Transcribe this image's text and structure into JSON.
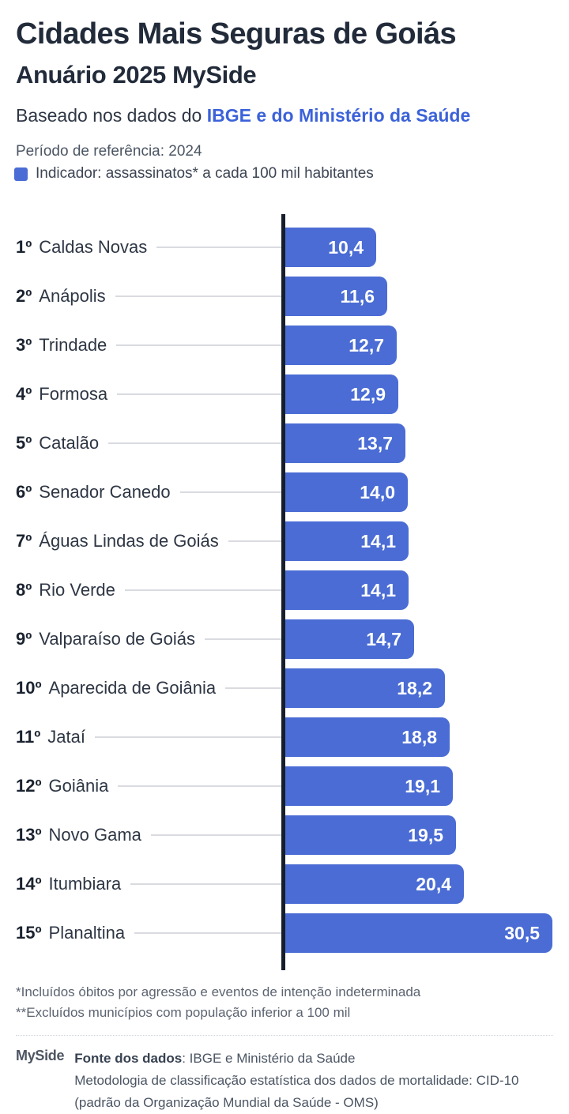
{
  "header": {
    "title": "Cidades Mais Seguras de Goiás",
    "subtitle": "Anuário 2025 MySide",
    "source_prefix": "Baseado nos dados do ",
    "source_link": "IBGE e do Ministério da Saúde",
    "period": "Período de referência: 2024",
    "legend_label": "Indicador: assassinatos* a cada 100 mil habitantes"
  },
  "chart_data": {
    "type": "bar",
    "orientation": "horizontal",
    "title": "Cidades Mais Seguras de Goiás — Anuário 2025 MySide",
    "xlabel": "assassinatos a cada 100 mil habitantes",
    "xlim": [
      0,
      30.5
    ],
    "bar_color": "#4a6cd4",
    "axis_color": "#171e2b",
    "rows": [
      {
        "rank": "1º",
        "city": "Caldas Novas",
        "value": 10.4,
        "label": "10,4"
      },
      {
        "rank": "2º",
        "city": "Anápolis",
        "value": 11.6,
        "label": "11,6"
      },
      {
        "rank": "3º",
        "city": "Trindade",
        "value": 12.7,
        "label": "12,7"
      },
      {
        "rank": "4º",
        "city": "Formosa",
        "value": 12.9,
        "label": "12,9"
      },
      {
        "rank": "5º",
        "city": "Catalão",
        "value": 13.7,
        "label": "13,7"
      },
      {
        "rank": "6º",
        "city": "Senador Canedo",
        "value": 14.0,
        "label": "14,0"
      },
      {
        "rank": "7º",
        "city": "Águas Lindas de Goiás",
        "value": 14.1,
        "label": "14,1"
      },
      {
        "rank": "8º",
        "city": "Rio Verde",
        "value": 14.1,
        "label": "14,1"
      },
      {
        "rank": "9º",
        "city": "Valparaíso de Goiás",
        "value": 14.7,
        "label": "14,7"
      },
      {
        "rank": "10º",
        "city": "Aparecida de Goiânia",
        "value": 18.2,
        "label": "18,2"
      },
      {
        "rank": "11º",
        "city": "Jataí",
        "value": 18.8,
        "label": "18,8"
      },
      {
        "rank": "12º",
        "city": "Goiânia",
        "value": 19.1,
        "label": "19,1"
      },
      {
        "rank": "13º",
        "city": "Novo Gama",
        "value": 19.5,
        "label": "19,5"
      },
      {
        "rank": "14º",
        "city": "Itumbiara",
        "value": 20.4,
        "label": "20,4"
      },
      {
        "rank": "15º",
        "city": "Planaltina",
        "value": 30.5,
        "label": "30,5"
      }
    ]
  },
  "footnotes": {
    "line1": "*Incluídos óbitos por agressão e eventos de intenção indeterminada",
    "line2": "**Excluídos municípios com população inferior a 100 mil"
  },
  "footer": {
    "logo": "MySide",
    "source_label": "Fonte dos dados",
    "source_value": ": IBGE e Ministério da Saúde",
    "methodology_line1": "Metodologia de classificação estatística dos dados de mortalidade: CID-10",
    "methodology_line2": "(padrão da Organização Mundial da Saúde - OMS)"
  }
}
